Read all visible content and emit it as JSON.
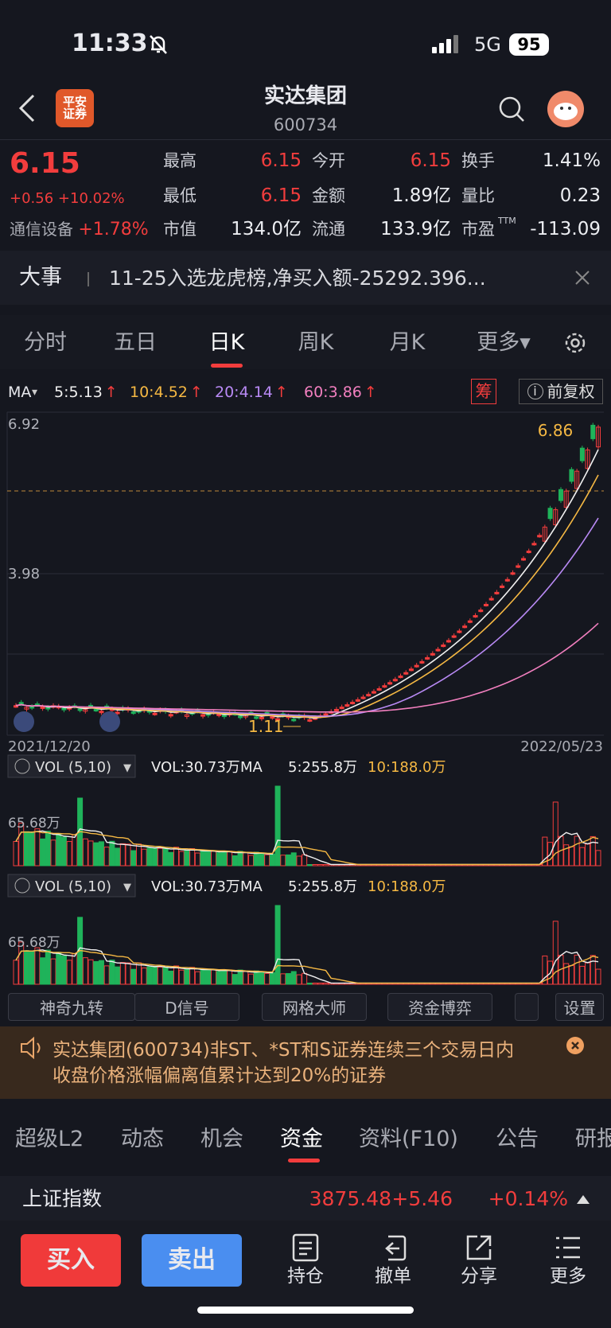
{
  "status": {
    "time": "11:33",
    "network": "5G",
    "battery": "95"
  },
  "header": {
    "logo_lines": [
      "平安",
      "证券"
    ],
    "title": "实达集团",
    "code": "600734"
  },
  "quote": {
    "price": "6.15",
    "change": "+0.56",
    "change_pct": "+10.02%",
    "sector": "通信设备",
    "sector_change": "+1.78%",
    "fields": [
      {
        "label": "最高",
        "value": "6.15",
        "up": true
      },
      {
        "label": "今开",
        "value": "6.15",
        "up": true
      },
      {
        "label": "换手",
        "value": "1.41%"
      },
      {
        "label": "最低",
        "value": "6.15",
        "up": true
      },
      {
        "label": "金额",
        "value": "1.89亿"
      },
      {
        "label": "量比",
        "value": "0.23"
      },
      {
        "label": "市值",
        "value": "134.0亿"
      },
      {
        "label": "流通",
        "value": "133.9亿"
      },
      {
        "label": "市盈",
        "sup": "TTM",
        "value": "-113.09"
      }
    ]
  },
  "news": {
    "tag": "大事",
    "text": "11-25入选龙虎榜,净买入额-25292.396..."
  },
  "period_tabs": [
    {
      "label": "分时"
    },
    {
      "label": "五日"
    },
    {
      "label": "日K",
      "active": true
    },
    {
      "label": "周K"
    },
    {
      "label": "月K"
    },
    {
      "label": "更多▾"
    }
  ],
  "ma_legend": {
    "label": "MA",
    "items": [
      "5:5.13",
      "10:4.52",
      "20:4.14",
      "60:3.86"
    ],
    "chip": "筹",
    "adjust": "前复权"
  },
  "chart": {
    "high_label": "6.92",
    "mid_label": "3.98",
    "peak_label": "6.86",
    "low_label": "1.11",
    "start_date": "2021/12/20",
    "end_date": "2022/05/23"
  },
  "volume_panels": [
    {
      "title": "VOL (5,10)",
      "vol": "VOL:30.73万",
      "ma": "MA",
      "ma5": "5:255.8万",
      "ma10": "10:188.0万",
      "axis_label": "65.68万"
    },
    {
      "title": "VOL (5,10)",
      "vol": "VOL:30.73万",
      "ma": "MA",
      "ma5": "5:255.8万",
      "ma10": "10:188.0万",
      "axis_label": "65.68万"
    }
  ],
  "tools": [
    "神奇九转",
    "D信号",
    "网格大师",
    "资金博弈",
    "设置"
  ],
  "alert": {
    "lines": [
      "实达集团(600734)非ST、*ST和S证券连续三个交易日内",
      "收盘价格涨幅偏离值累计达到20%的证券"
    ]
  },
  "section_tabs": [
    {
      "label": "超级L2"
    },
    {
      "label": "动态"
    },
    {
      "label": "机会"
    },
    {
      "label": "资金",
      "active": true
    },
    {
      "label": "资料(F10)"
    },
    {
      "label": "公告"
    },
    {
      "label": "研报"
    }
  ],
  "index": {
    "name": "上证指数",
    "value": "3875.48",
    "change": "+5.46",
    "change_pct": "+0.14%"
  },
  "actions": {
    "buy": "买入",
    "sell": "卖出",
    "items": [
      "持仓",
      "撤单",
      "分享",
      "更多"
    ]
  }
}
